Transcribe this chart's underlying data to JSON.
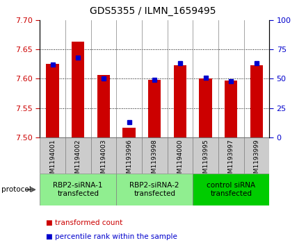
{
  "title": "GDS5355 / ILMN_1659495",
  "samples": [
    "GSM1194001",
    "GSM1194002",
    "GSM1194003",
    "GSM1193996",
    "GSM1193998",
    "GSM1194000",
    "GSM1193995",
    "GSM1193997",
    "GSM1193999"
  ],
  "red_values": [
    7.625,
    7.663,
    7.607,
    7.516,
    7.598,
    7.623,
    7.601,
    7.597,
    7.623
  ],
  "blue_values_pct": [
    62,
    68,
    50,
    13,
    49,
    63,
    51,
    48,
    63
  ],
  "ylim_left": [
    7.5,
    7.7
  ],
  "ylim_right": [
    0,
    100
  ],
  "yticks_left": [
    7.5,
    7.55,
    7.6,
    7.65,
    7.7
  ],
  "yticks_right": [
    0,
    25,
    50,
    75,
    100
  ],
  "groups": [
    {
      "label": "RBP2-siRNA-1\ntransfected",
      "start": 0,
      "end": 3,
      "color": "#90EE90"
    },
    {
      "label": "RBP2-siRNA-2\ntransfected",
      "start": 3,
      "end": 6,
      "color": "#90EE90"
    },
    {
      "label": "control siRNA\ntransfected",
      "start": 6,
      "end": 9,
      "color": "#00CC00"
    }
  ],
  "red_color": "#CC0000",
  "blue_color": "#0000CC",
  "bar_width": 0.5,
  "plot_bg_color": "#ffffff",
  "tick_label_color_left": "#CC0000",
  "tick_label_color_right": "#0000CC",
  "sample_box_color": "#cccccc",
  "group_colors": [
    "#90EE90",
    "#90EE90",
    "#00CC00"
  ],
  "legend_items": [
    {
      "label": "transformed count",
      "color": "#CC0000"
    },
    {
      "label": "percentile rank within the sample",
      "color": "#0000CC"
    }
  ]
}
